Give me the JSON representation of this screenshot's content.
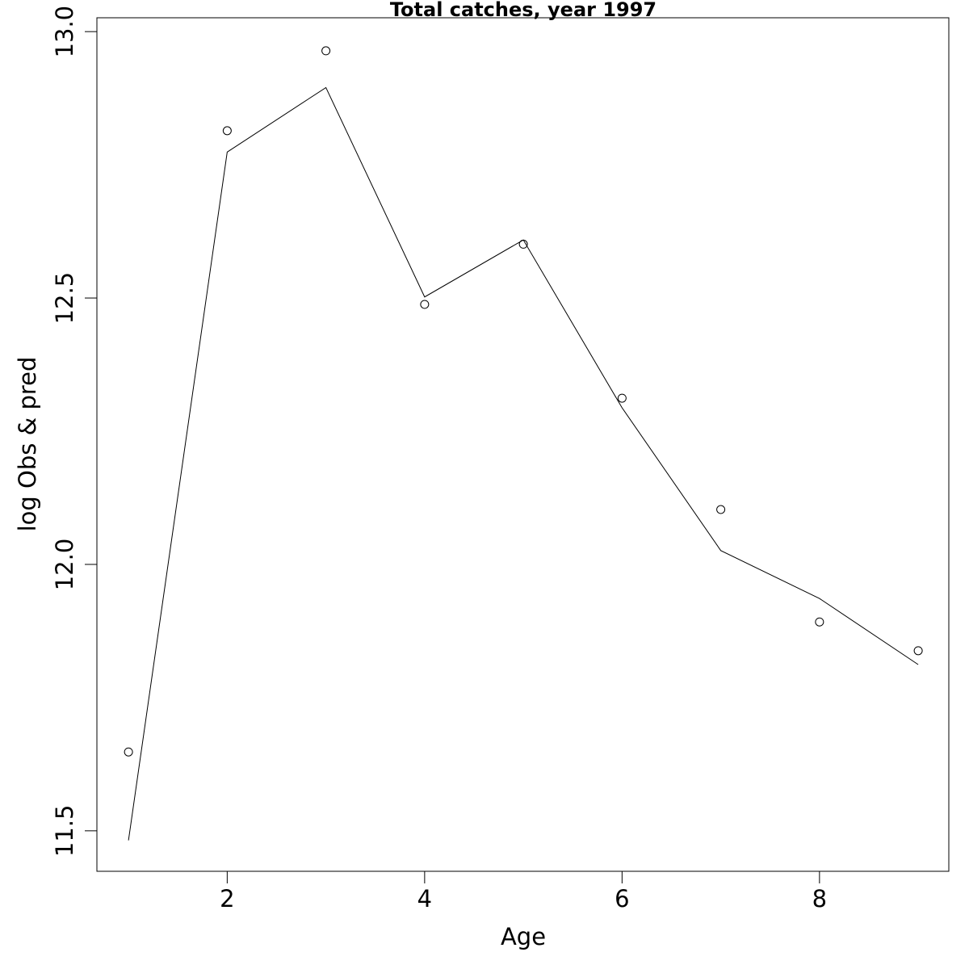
{
  "chart_data": {
    "type": "line",
    "title": "Total catches, year 1997",
    "xlabel": "Age",
    "ylabel": "log Obs & pred",
    "x": [
      1,
      2,
      3,
      4,
      5,
      6,
      7,
      8,
      9
    ],
    "series": [
      {
        "mark": "points",
        "color": "#000000",
        "values": [
          11.648,
          12.814,
          12.964,
          12.488,
          12.601,
          12.312,
          12.103,
          11.892,
          11.838
        ]
      },
      {
        "mark": "line",
        "color": "#000000",
        "values": [
          11.482,
          12.774,
          12.895,
          12.502,
          12.609,
          12.294,
          12.026,
          11.936,
          11.812
        ]
      }
    ],
    "xlim": [
      0.68,
      9.31
    ],
    "ylim": [
      11.424,
      13.026
    ],
    "xticks": [
      2,
      4,
      6,
      8
    ],
    "yticks": [
      {
        "value": 11.5,
        "label": "11.5"
      },
      {
        "value": 12,
        "label": "12.0"
      },
      {
        "value": 12.5,
        "label": "12.5"
      },
      {
        "value": 13,
        "label": "13.0"
      }
    ]
  }
}
